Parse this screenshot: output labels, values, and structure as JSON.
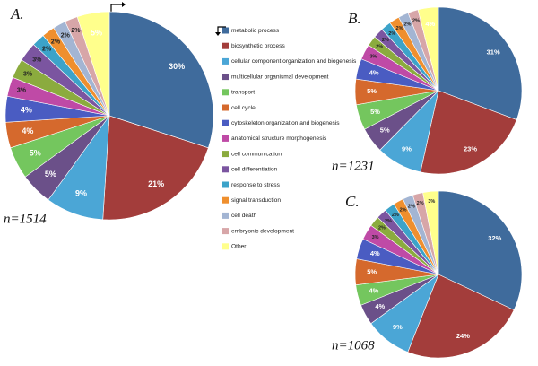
{
  "chart_data": [
    {
      "type": "pie",
      "label": "A.",
      "note": "n=1514",
      "values": [
        30,
        21,
        9,
        5,
        5,
        4,
        4,
        3,
        3,
        3,
        2,
        2,
        2,
        2,
        5
      ],
      "value_labels": [
        "30%",
        "21%",
        "9%",
        "5%",
        "5%",
        "4%",
        "4%",
        "3%",
        "3%",
        "3%",
        "2%",
        "2%",
        "2%",
        "2%",
        "5%"
      ]
    },
    {
      "type": "pie",
      "label": "B.",
      "note": "n=1231",
      "values": [
        31,
        23,
        9,
        5,
        5,
        5,
        4,
        3,
        2,
        2,
        2,
        2,
        2,
        2,
        4
      ],
      "value_labels": [
        "31%",
        "23%",
        "9%",
        "5%",
        "5%",
        "5%",
        "4%",
        "3%",
        "2%",
        "2%",
        "2%",
        "2%",
        "2%",
        "2%",
        "4%"
      ]
    },
    {
      "type": "pie",
      "label": "C.",
      "note": "n=1068",
      "values": [
        32,
        24,
        9,
        4,
        4,
        5,
        4,
        3,
        2,
        2,
        2,
        2,
        2,
        2,
        3
      ],
      "value_labels": [
        "32%",
        "24%",
        "9%",
        "4%",
        "4%",
        "5%",
        "4%",
        "3%",
        "2%",
        "2%",
        "2%",
        "2%",
        "2%",
        "2%",
        "3%"
      ]
    }
  ],
  "legend": {
    "categories": [
      "metabolic process",
      "biosynthetic process",
      "cellular component organization and biogenesis",
      "multicellular organismal development",
      "transport",
      "cell cycle",
      "cytoskeleton organization and biogenesis",
      "anatomical structure morphogenesis",
      "cell communication",
      "cell differentiation",
      "response to stress",
      "signal transduction",
      "cell death",
      "embryonic development",
      "Other"
    ],
    "colors": [
      "#3f6b9c",
      "#a33d3b",
      "#4ba6d6",
      "#6b5089",
      "#74c65e",
      "#d5692d",
      "#4a5cc2",
      "#bf4aa6",
      "#8bab3e",
      "#7b55a0",
      "#3ca3c9",
      "#ef8f2e",
      "#a3b5d3",
      "#d7a6a8",
      "#ffff8c"
    ]
  }
}
